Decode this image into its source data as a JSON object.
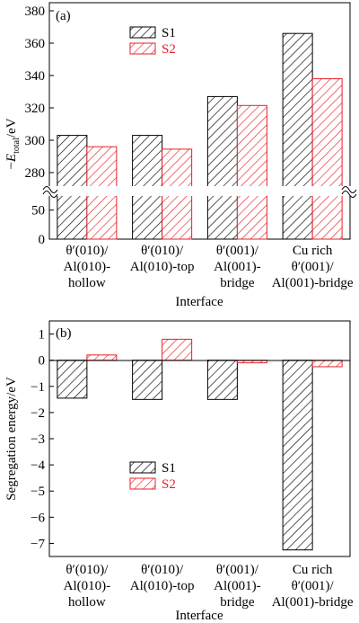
{
  "chart_data": [
    {
      "type": "bar",
      "panel_label": "(a)",
      "ylabel_sign": "−",
      "ylabel_italic": "E",
      "ylabel_sub": "total",
      "ylabel_unit": "/eV",
      "xlabel": "Interface",
      "y_break": true,
      "ylim_lower": [
        0,
        65
      ],
      "ylim_upper": [
        275,
        385
      ],
      "yticks_lower": [
        "0",
        "50"
      ],
      "yticks_upper": [
        "280",
        "300",
        "320",
        "340",
        "360",
        "380"
      ],
      "categories": [
        [
          "θ′(010)/",
          "Al(010)-",
          "hollow"
        ],
        [
          "θ′(010)/",
          "Al(010)-top"
        ],
        [
          "θ′(001)/",
          "Al(001)-",
          "bridge"
        ],
        [
          "Cu rich",
          "θ′(001)/",
          "Al(001)-bridge"
        ]
      ],
      "series": [
        {
          "name": "S1",
          "values": [
            303,
            303,
            327,
            366
          ],
          "color": "#000000"
        },
        {
          "name": "S2",
          "values": [
            296,
            294.5,
            321.5,
            338
          ],
          "color": "#e8202a"
        }
      ],
      "legend_position": "top-left"
    },
    {
      "type": "bar",
      "panel_label": "(b)",
      "ylabel": "Segregation energy/eV",
      "xlabel": "Interface",
      "ylim": [
        -7.5,
        1.5
      ],
      "yticks": [
        "1",
        "0",
        "−1",
        "−2",
        "−3",
        "−4",
        "−5",
        "−6",
        "−7"
      ],
      "categories": [
        [
          "θ′(010)/",
          "Al(010)-",
          "hollow"
        ],
        [
          "θ′(010)/",
          "Al(010)-top"
        ],
        [
          "θ′(001)/",
          "Al(001)-",
          "bridge"
        ],
        [
          "Cu rich",
          "θ′(001)/",
          "Al(001)-bridge"
        ]
      ],
      "series": [
        {
          "name": "S1",
          "values": [
            -1.45,
            -1.5,
            -1.5,
            -7.25
          ],
          "color": "#000000"
        },
        {
          "name": "S2",
          "values": [
            0.2,
            0.8,
            -0.1,
            -0.25
          ],
          "color": "#e8202a"
        }
      ],
      "legend_position": "center-left"
    }
  ]
}
